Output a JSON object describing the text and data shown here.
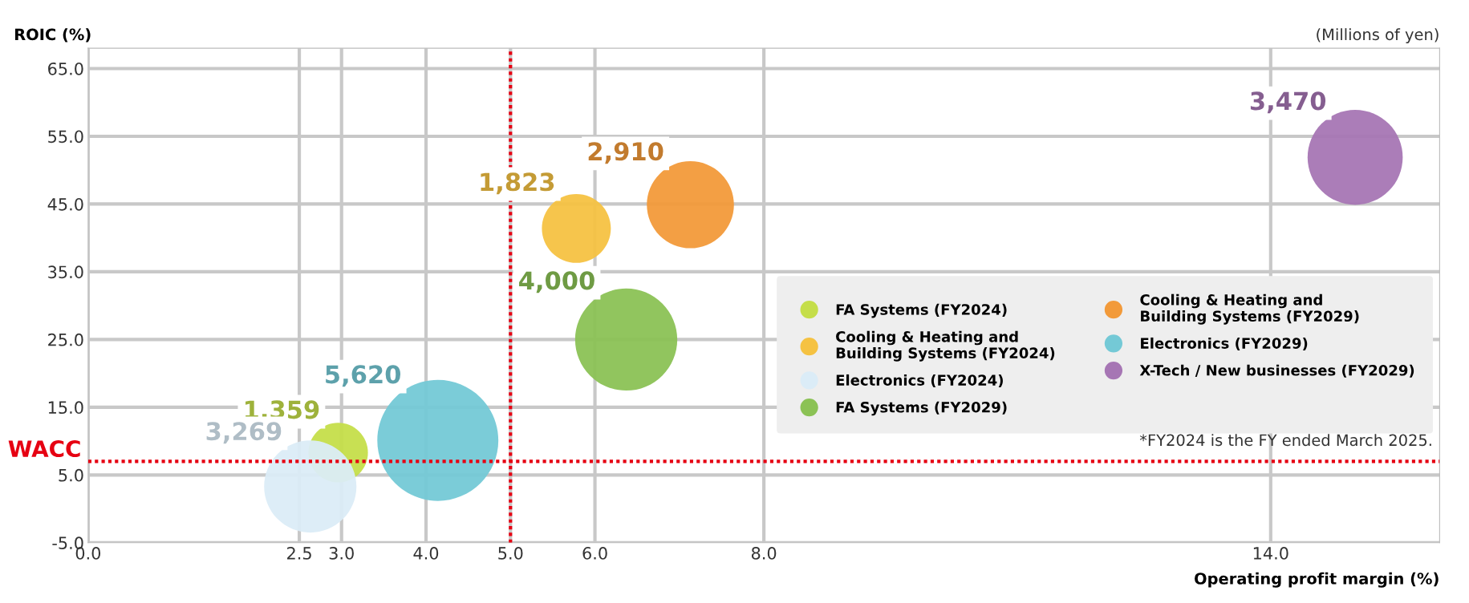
{
  "chart_data": {
    "type": "bubble",
    "xlabel": "Operating profit margin (%)",
    "ylabel": "ROIC (%)",
    "annotations": [
      "(Millions of yen)",
      "*FY2024 is the FY ended March 2025."
    ],
    "xlim": [
      0,
      16
    ],
    "ylim": [
      -5,
      68
    ],
    "xticks": [
      {
        "value": 0,
        "label": "0.0"
      },
      {
        "value": 2.5,
        "label": "2.5"
      },
      {
        "value": 3,
        "label": "3.0"
      },
      {
        "value": 4,
        "label": "4.0"
      },
      {
        "value": 5,
        "label": "5.0"
      },
      {
        "value": 6,
        "label": "6.0"
      },
      {
        "value": 8,
        "label": "8.0"
      },
      {
        "value": 14,
        "label": "14.0"
      }
    ],
    "yticks": [
      {
        "value": -5,
        "label": "-5.0"
      },
      {
        "value": 5,
        "label": "5.0"
      },
      {
        "value": 15,
        "label": "15.0"
      },
      {
        "value": 25,
        "label": "25.0"
      },
      {
        "value": 35,
        "label": "35.0"
      },
      {
        "value": 45,
        "label": "45.0"
      },
      {
        "value": 55,
        "label": "55.0"
      },
      {
        "value": 65,
        "label": "65.0"
      }
    ],
    "grid": true,
    "legend": "right",
    "ref_lines": [
      {
        "axis": "y",
        "value": 7,
        "label": "WACC",
        "color": "#e60012",
        "line_style": "dotted"
      },
      {
        "axis": "x",
        "value": 5,
        "label": null,
        "color": "#e60012",
        "line_style": "dotted"
      }
    ],
    "series": [
      {
        "name": "FA Systems (FY2024)",
        "color": "#c5de4a",
        "x": [
          2.96
        ],
        "values": [
          8.3
        ],
        "sizes": [
          1359
        ],
        "value_labels": [
          "1,359"
        ]
      },
      {
        "name": "Cooling & Heating and\nBuilding Systems (FY2024)",
        "color": "#f5c242",
        "x": [
          5.78
        ],
        "values": [
          41.4
        ],
        "sizes": [
          1823
        ],
        "value_labels": [
          "1,823"
        ]
      },
      {
        "name": "Electronics (FY2024)",
        "color": "#dbecf7",
        "x": [
          2.63
        ],
        "values": [
          3.3
        ],
        "sizes": [
          3269
        ],
        "value_labels": [
          "3,269"
        ]
      },
      {
        "name": "FA Systems (FY2029)",
        "color": "#8bc255",
        "x": [
          6.37
        ],
        "values": [
          25.0
        ],
        "sizes": [
          4000
        ],
        "value_labels": [
          "4,000"
        ]
      },
      {
        "name": "Cooling & Heating and\nBuilding Systems (FY2029)",
        "color": "#f29a3a",
        "x": [
          7.13
        ],
        "values": [
          44.9
        ],
        "sizes": [
          2910
        ],
        "value_labels": [
          "2,910"
        ]
      },
      {
        "name": "Electronics (FY2029)",
        "color": "#74c9d6",
        "x": [
          4.14
        ],
        "values": [
          10.1
        ],
        "sizes": [
          5620
        ],
        "value_labels": [
          "5,620"
        ]
      },
      {
        "name": "X-Tech / New businesses (FY2029)",
        "color": "#a676b4",
        "x": [
          15.0
        ],
        "values": [
          51.9
        ],
        "sizes": [
          3470
        ],
        "value_labels": [
          "3,470"
        ]
      }
    ]
  }
}
